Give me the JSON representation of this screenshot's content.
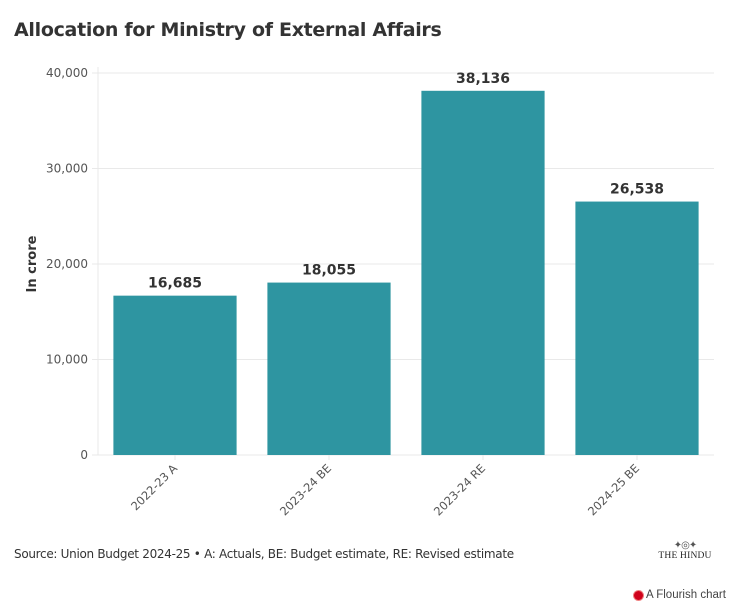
{
  "title": "Allocation for Ministry of External Affairs",
  "footer": {
    "source": "Source: Union Budget 2024-25 • A: Actuals, BE: Budget estimate, RE: Revised estimate",
    "logo_text": "THE HINDU",
    "logo_icon": "newspaper-emblem-icon",
    "flourish_label": "A Flourish chart",
    "flourish_icon": "flourish-logo-icon"
  },
  "colors": {
    "bar": "#2e95a1",
    "grid": "#e9e9e9",
    "text": "#333333",
    "tick": "#555555"
  },
  "chart_data": {
    "type": "bar",
    "title": "Allocation for Ministry of External Affairs",
    "xlabel": "",
    "ylabel": "In crore",
    "categories": [
      "2022-23 A",
      "2023-24 BE",
      "2023-24 RE",
      "2024-25 BE"
    ],
    "values": [
      16685,
      18055,
      38136,
      26538
    ],
    "data_labels": [
      "16,685",
      "18,055",
      "38,136",
      "26,538"
    ],
    "ylim": [
      0,
      40000
    ],
    "yticks": [
      0,
      10000,
      20000,
      30000,
      40000
    ],
    "ytick_labels": [
      "0",
      "10,000",
      "20,000",
      "30,000",
      "40,000"
    ],
    "grid": true,
    "legend": "none"
  }
}
